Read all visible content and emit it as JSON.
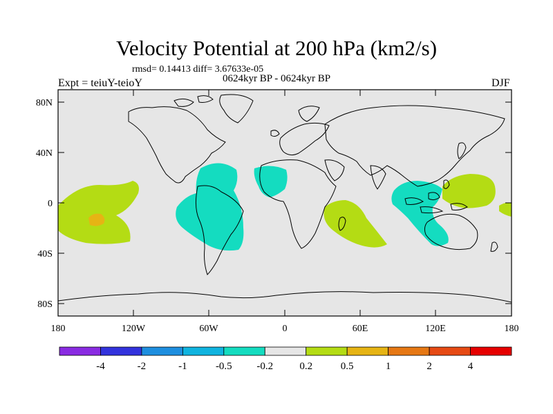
{
  "title": "Velocity Potential at 200 hPa (km2/s)",
  "subtitle": "rmsd= 0.14413 diff= 3.67633e-05",
  "left_label": "Expt = teiuY-teioY",
  "center_label": "0624kyr BP - 0624kyr BP",
  "right_label": "DJF",
  "lat_ticks": [
    "80N",
    "40N",
    "0",
    "40S",
    "80S"
  ],
  "lon_ticks": [
    "180",
    "120W",
    "60W",
    "0",
    "60E",
    "120E",
    "180"
  ],
  "colorbar": {
    "labels": [
      "-4",
      "-2",
      "-1",
      "-0.5",
      "-0.2",
      "0.2",
      "0.5",
      "1",
      "2",
      "4"
    ],
    "colors": [
      "#8a2be2",
      "#3333dd",
      "#1e8fe0",
      "#10b4e0",
      "#14dcc0",
      "#e6e6e6",
      "#b4dc14",
      "#e6b414",
      "#e67814",
      "#e64a14",
      "#e60000"
    ]
  },
  "colors": {
    "background": "#e6e6e6",
    "negative_small": "#14dcc0",
    "positive_small": "#b4dc14",
    "positive_medium": "#e6b414",
    "coastline": "#000000"
  }
}
